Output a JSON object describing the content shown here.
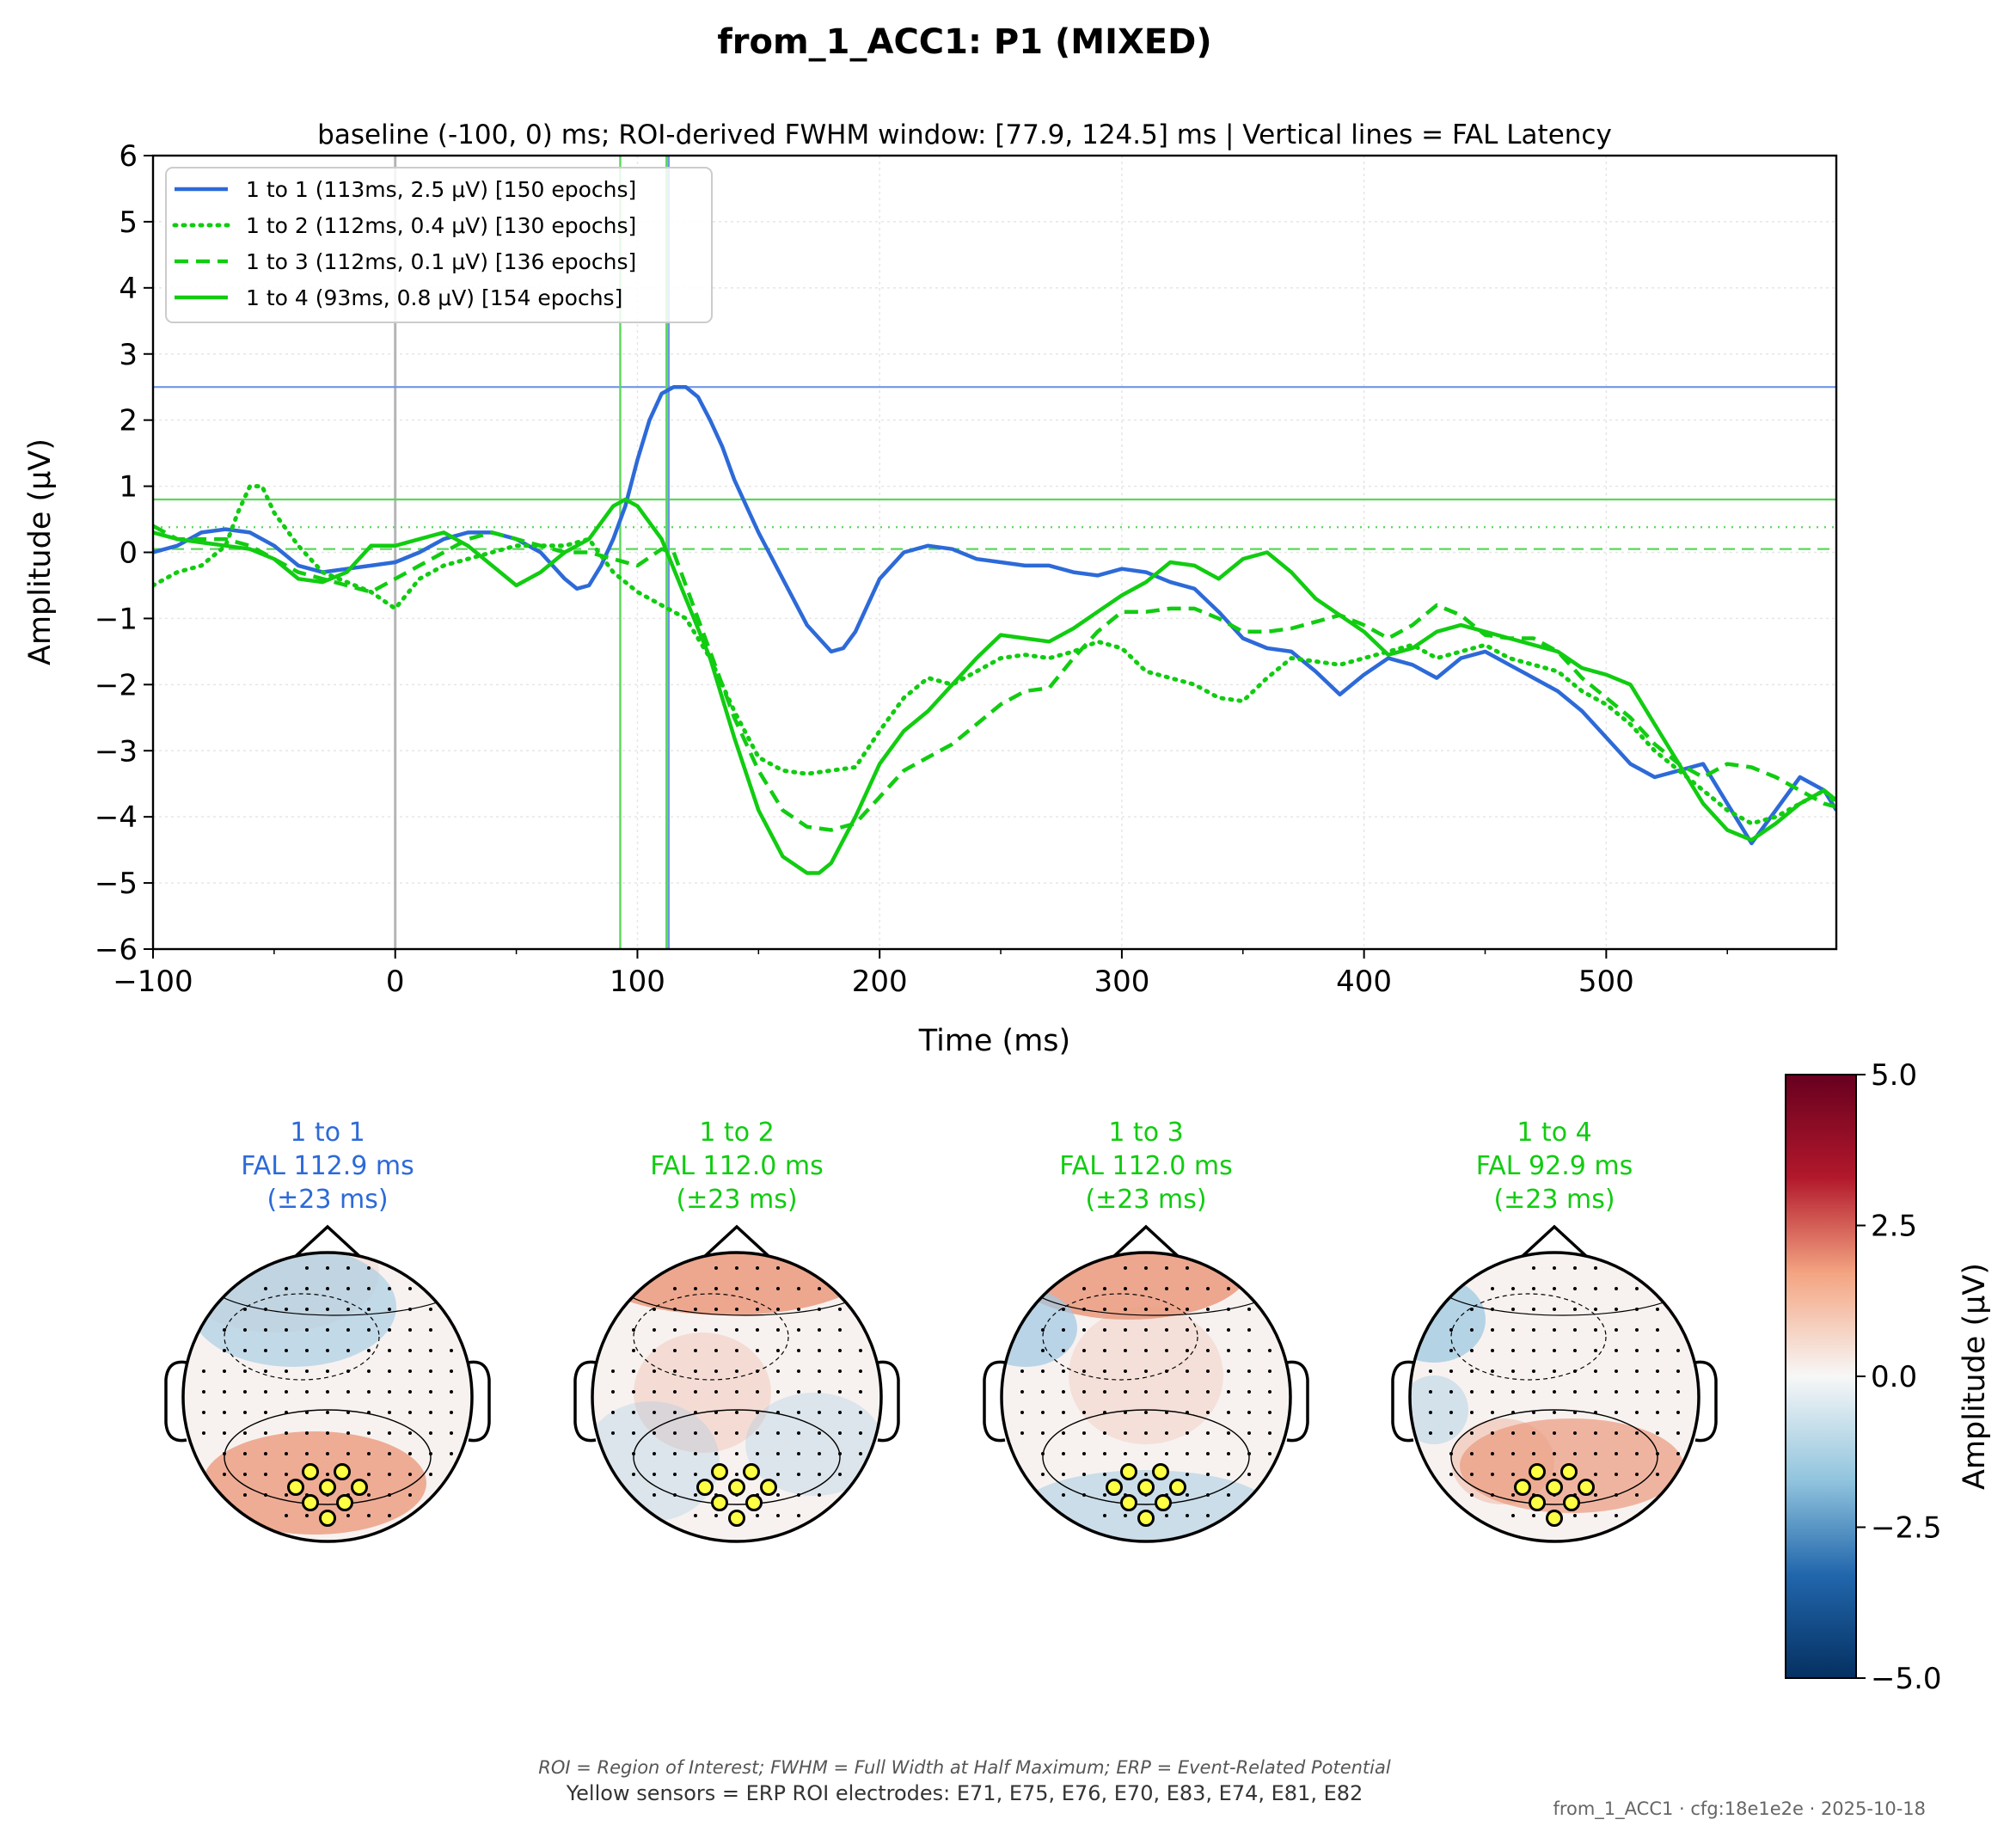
{
  "figure": {
    "title": "from_1_ACC1: P1 (MIXED)",
    "subtitle": "baseline (-100, 0) ms; ROI-derived FWHM window: [77.9, 124.5] ms | Vertical lines = FAL Latency",
    "footnote_abbrev": "ROI = Region of Interest; FWHM = Full Width at Half Maximum; ERP = Event-Related Potential",
    "footnote_sensors": "Yellow sensors = ERP ROI electrodes: E71, E75, E76, E70, E83, E74, E81, E82",
    "stamp": "from_1_ACC1 · cfg:18e1e2e · 2025-10-18"
  },
  "chart_data": {
    "type": "line",
    "xlabel": "Time (ms)",
    "ylabel": "Amplitude (μV)",
    "xlim": [
      -100,
      595
    ],
    "ylim": [
      -6,
      6
    ],
    "xticks": [
      -100,
      0,
      100,
      200,
      300,
      400,
      500
    ],
    "xtick_labels": [
      "−100",
      "0",
      "100",
      "200",
      "300",
      "400",
      "500"
    ],
    "yticks": [
      6,
      5,
      4,
      3,
      2,
      1,
      0,
      -1,
      -2,
      -3,
      -4,
      -5,
      -6
    ],
    "ytick_labels": [
      "6",
      "5",
      "4",
      "3",
      "2",
      "1",
      "0",
      "−1",
      "−2",
      "−3",
      "−4",
      "−5",
      "−6"
    ],
    "grid": true,
    "legend_position": "top-left",
    "baseline_marker_ms": 0,
    "series": [
      {
        "name": "1 to 1 (113ms, 2.5 μV) [150 epochs]",
        "color": "#2d6ad8",
        "style": "solid",
        "fal_ms": 112.9,
        "peak_uv": 2.5,
        "x": [
          -100,
          -90,
          -80,
          -70,
          -60,
          -50,
          -40,
          -30,
          -20,
          -10,
          0,
          10,
          20,
          30,
          40,
          50,
          60,
          70,
          75,
          80,
          85,
          90,
          95,
          100,
          105,
          110,
          115,
          120,
          125,
          130,
          135,
          140,
          150,
          160,
          170,
          180,
          185,
          190,
          200,
          210,
          220,
          230,
          240,
          250,
          260,
          270,
          280,
          290,
          300,
          310,
          320,
          330,
          340,
          350,
          360,
          370,
          380,
          390,
          400,
          410,
          420,
          430,
          440,
          450,
          460,
          470,
          480,
          490,
          500,
          510,
          520,
          530,
          540,
          550,
          560,
          570,
          580,
          590,
          595
        ],
        "y": [
          0.0,
          0.1,
          0.3,
          0.35,
          0.3,
          0.1,
          -0.2,
          -0.3,
          -0.25,
          -0.2,
          -0.15,
          0.0,
          0.2,
          0.3,
          0.3,
          0.2,
          0.0,
          -0.4,
          -0.55,
          -0.5,
          -0.2,
          0.2,
          0.7,
          1.4,
          2.0,
          2.4,
          2.5,
          2.5,
          2.35,
          2.0,
          1.6,
          1.1,
          0.3,
          -0.4,
          -1.1,
          -1.5,
          -1.45,
          -1.2,
          -0.4,
          0.0,
          0.1,
          0.05,
          -0.1,
          -0.15,
          -0.2,
          -0.2,
          -0.3,
          -0.35,
          -0.25,
          -0.3,
          -0.45,
          -0.55,
          -0.9,
          -1.3,
          -1.45,
          -1.5,
          -1.8,
          -2.15,
          -1.85,
          -1.6,
          -1.7,
          -1.9,
          -1.6,
          -1.5,
          -1.7,
          -1.9,
          -2.1,
          -2.4,
          -2.8,
          -3.2,
          -3.4,
          -3.3,
          -3.2,
          -3.8,
          -4.4,
          -3.9,
          -3.4,
          -3.6,
          -3.9
        ]
      },
      {
        "name": "1 to 2 (112ms, 0.4 μV) [130 epochs]",
        "color": "#11cc11",
        "style": "dotted",
        "fal_ms": 112.0,
        "peak_uv": 0.4,
        "x": [
          -100,
          -90,
          -80,
          -70,
          -65,
          -60,
          -55,
          -50,
          -40,
          -30,
          -20,
          -10,
          0,
          10,
          20,
          30,
          40,
          50,
          60,
          70,
          80,
          90,
          100,
          110,
          120,
          130,
          140,
          150,
          160,
          170,
          180,
          190,
          200,
          210,
          220,
          230,
          240,
          250,
          260,
          270,
          280,
          290,
          300,
          310,
          320,
          330,
          340,
          350,
          360,
          370,
          380,
          390,
          400,
          410,
          420,
          430,
          440,
          450,
          460,
          470,
          480,
          490,
          500,
          510,
          520,
          530,
          540,
          550,
          560,
          570,
          580,
          590,
          595
        ],
        "y": [
          -0.5,
          -0.3,
          -0.2,
          0.1,
          0.6,
          1.0,
          1.0,
          0.6,
          0.1,
          -0.3,
          -0.45,
          -0.6,
          -0.85,
          -0.4,
          -0.2,
          -0.1,
          0.0,
          0.1,
          0.1,
          0.1,
          0.2,
          -0.3,
          -0.6,
          -0.8,
          -1.0,
          -1.6,
          -2.4,
          -3.1,
          -3.3,
          -3.35,
          -3.3,
          -3.25,
          -2.7,
          -2.2,
          -1.9,
          -2.0,
          -1.8,
          -1.6,
          -1.55,
          -1.6,
          -1.5,
          -1.35,
          -1.45,
          -1.8,
          -1.9,
          -2.0,
          -2.2,
          -2.25,
          -1.9,
          -1.6,
          -1.65,
          -1.7,
          -1.6,
          -1.5,
          -1.4,
          -1.6,
          -1.5,
          -1.4,
          -1.6,
          -1.7,
          -1.8,
          -2.1,
          -2.3,
          -2.6,
          -3.0,
          -3.3,
          -3.6,
          -3.9,
          -4.1,
          -4.0,
          -3.8,
          -3.6,
          -3.8
        ]
      },
      {
        "name": "1 to 3 (112ms, 0.1 μV) [136 epochs]",
        "color": "#11cc11",
        "style": "dashed",
        "fal_ms": 112.0,
        "peak_uv": 0.1,
        "x": [
          -100,
          -90,
          -80,
          -70,
          -60,
          -50,
          -40,
          -30,
          -20,
          -10,
          0,
          10,
          20,
          30,
          40,
          50,
          60,
          70,
          80,
          90,
          100,
          110,
          115,
          120,
          130,
          140,
          150,
          160,
          170,
          180,
          190,
          200,
          210,
          220,
          230,
          240,
          250,
          260,
          270,
          280,
          290,
          300,
          310,
          320,
          330,
          340,
          350,
          360,
          370,
          380,
          390,
          400,
          410,
          420,
          430,
          440,
          450,
          460,
          470,
          480,
          490,
          500,
          510,
          520,
          530,
          540,
          550,
          560,
          570,
          580,
          590,
          595
        ],
        "y": [
          0.4,
          0.2,
          0.2,
          0.2,
          0.1,
          -0.1,
          -0.3,
          -0.4,
          -0.5,
          -0.6,
          -0.4,
          -0.2,
          0.0,
          0.2,
          0.3,
          0.2,
          0.1,
          0.0,
          0.0,
          -0.1,
          -0.2,
          0.05,
          0.0,
          -0.5,
          -1.5,
          -2.5,
          -3.3,
          -3.9,
          -4.15,
          -4.2,
          -4.1,
          -3.7,
          -3.3,
          -3.1,
          -2.9,
          -2.6,
          -2.3,
          -2.1,
          -2.05,
          -1.6,
          -1.2,
          -0.9,
          -0.9,
          -0.85,
          -0.85,
          -1.0,
          -1.2,
          -1.2,
          -1.15,
          -1.05,
          -0.95,
          -1.1,
          -1.3,
          -1.1,
          -0.8,
          -0.95,
          -1.25,
          -1.3,
          -1.3,
          -1.5,
          -1.9,
          -2.2,
          -2.5,
          -2.9,
          -3.2,
          -3.4,
          -3.2,
          -3.25,
          -3.4,
          -3.6,
          -3.8,
          -3.85
        ]
      },
      {
        "name": "1 to 4 (93ms, 0.8 μV) [154 epochs]",
        "color": "#11cc11",
        "style": "solid",
        "fal_ms": 92.9,
        "peak_uv": 0.8,
        "x": [
          -100,
          -90,
          -80,
          -70,
          -60,
          -50,
          -40,
          -30,
          -20,
          -10,
          0,
          10,
          20,
          30,
          40,
          50,
          60,
          70,
          80,
          90,
          95,
          100,
          110,
          120,
          130,
          140,
          150,
          160,
          170,
          175,
          180,
          190,
          200,
          210,
          220,
          230,
          240,
          250,
          260,
          270,
          280,
          290,
          300,
          310,
          320,
          330,
          340,
          350,
          360,
          370,
          380,
          390,
          400,
          410,
          420,
          430,
          440,
          450,
          460,
          470,
          480,
          490,
          500,
          510,
          520,
          530,
          540,
          550,
          560,
          570,
          580,
          590,
          595
        ],
        "y": [
          0.3,
          0.2,
          0.15,
          0.1,
          0.05,
          -0.1,
          -0.4,
          -0.45,
          -0.3,
          0.1,
          0.1,
          0.2,
          0.3,
          0.1,
          -0.2,
          -0.5,
          -0.3,
          0.0,
          0.2,
          0.7,
          0.8,
          0.7,
          0.2,
          -0.7,
          -1.6,
          -2.8,
          -3.9,
          -4.6,
          -4.85,
          -4.85,
          -4.7,
          -4.0,
          -3.2,
          -2.7,
          -2.4,
          -2.0,
          -1.6,
          -1.25,
          -1.3,
          -1.35,
          -1.15,
          -0.9,
          -0.65,
          -0.45,
          -0.15,
          -0.2,
          -0.4,
          -0.1,
          0.0,
          -0.3,
          -0.7,
          -0.95,
          -1.2,
          -1.55,
          -1.45,
          -1.2,
          -1.1,
          -1.2,
          -1.3,
          -1.4,
          -1.5,
          -1.75,
          -1.85,
          -2.0,
          -2.6,
          -3.2,
          -3.8,
          -4.2,
          -4.35,
          -4.1,
          -3.8,
          -3.6,
          -3.75
        ]
      }
    ],
    "horizontal_refs": [
      {
        "y": 2.5,
        "color": "#6f96e8",
        "style": "solid"
      },
      {
        "y": 0.8,
        "color": "#5ad85a",
        "style": "solid"
      },
      {
        "y": 0.38,
        "color": "#5ad85a",
        "style": "dotted"
      },
      {
        "y": 0.05,
        "color": "#5ad85a",
        "style": "dashed"
      }
    ],
    "vertical_refs": [
      {
        "x": 92.9,
        "color": "#5ad85a",
        "style": "solid"
      },
      {
        "x": 112.0,
        "color": "#5ad85a",
        "style": "solid"
      },
      {
        "x": 112.9,
        "color": "#6f96e8",
        "style": "solid"
      }
    ]
  },
  "topomaps": [
    {
      "condition": "1 to 1",
      "fal": "FAL 112.9 ms",
      "window": "(±23 ms)",
      "color": "#2d6ad8"
    },
    {
      "condition": "1 to 2",
      "fal": "FAL 112.0 ms",
      "window": "(±23 ms)",
      "color": "#11cc11"
    },
    {
      "condition": "1 to 3",
      "fal": "FAL 112.0 ms",
      "window": "(±23 ms)",
      "color": "#11cc11"
    },
    {
      "condition": "1 to 4",
      "fal": "FAL 92.9 ms",
      "window": "(±23 ms)",
      "color": "#11cc11"
    }
  ],
  "colorbar": {
    "label": "Amplitude (μV)",
    "ticks": [
      5.0,
      2.5,
      0.0,
      -2.5,
      -5.0
    ],
    "tick_labels": [
      "5.0",
      "2.5",
      "0.0",
      "−2.5",
      "−5.0"
    ],
    "colormap": "RdBu_r",
    "stops": [
      "#67001f",
      "#d6604d",
      "#fddbc7",
      "#f7f7f7",
      "#d1e5f0",
      "#4393c3",
      "#053061"
    ]
  }
}
